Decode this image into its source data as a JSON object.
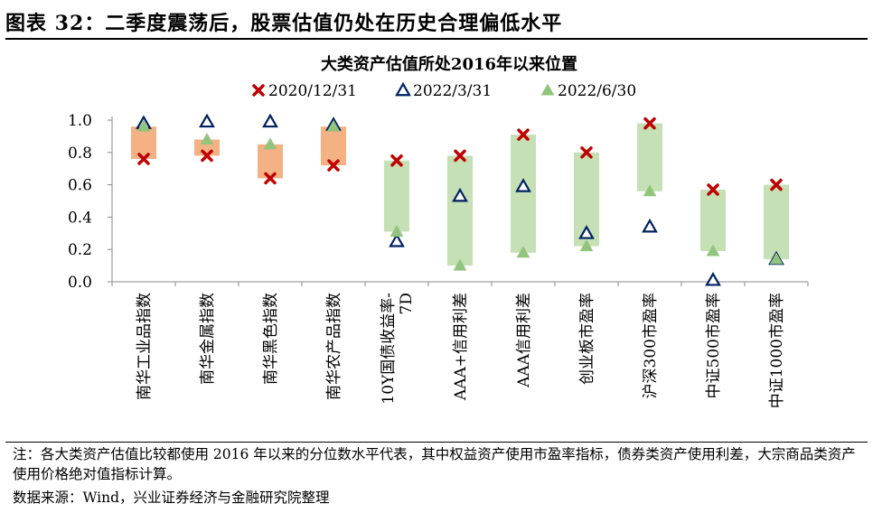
{
  "figure": {
    "title": "图表 32：二季度震荡后，股票估值仍处在历史合理偏低水平",
    "note": "注：各大类资产估值比较都使用 2016 年以来的分位数水平代表，其中权益资产使用市盈率指标，债券类资产使用利差，大宗商品类资产使用价格绝对值指标计算。",
    "source": "数据来源：Wind，兴业证券经济与金融研究院整理"
  },
  "chart_data": {
    "type": "scatter",
    "title": "大类资产估值所处2016年以来位置",
    "categories": [
      "南华工业品指数",
      "南华金属指数",
      "南华黑色指数",
      "南华农产品指数",
      "10Y国债收益率-7D",
      "AAA+信用利差",
      "AAA信用利差",
      "创业板市盈率",
      "沪深300市盈率",
      "中证500市盈率",
      "中证1000市盈率"
    ],
    "category_lines": [
      [
        "南华工业品指数"
      ],
      [
        "南华金属指数"
      ],
      [
        "南华黑色指数"
      ],
      [
        "南华农产品指数"
      ],
      [
        "10Y国债收益率-",
        "7D"
      ],
      [
        "AAA+信用利差"
      ],
      [
        "AAA信用利差"
      ],
      [
        "创业板市盈率"
      ],
      [
        "沪深300市盈率"
      ],
      [
        "中证500市盈率"
      ],
      [
        "中证1000市盈率"
      ]
    ],
    "ylim": [
      0,
      1.0
    ],
    "yticks": [
      "0.0",
      "0.2",
      "0.4",
      "0.6",
      "0.8",
      "1.0"
    ],
    "range_bars": {
      "low": [
        0.76,
        0.78,
        0.64,
        0.72,
        0.31,
        0.1,
        0.18,
        0.22,
        0.56,
        0.19,
        0.14
      ],
      "high": [
        0.96,
        0.88,
        0.85,
        0.96,
        0.75,
        0.78,
        0.91,
        0.8,
        0.98,
        0.57,
        0.6
      ],
      "colors": [
        "#f4b183",
        "#f4b183",
        "#f4b183",
        "#f4b183",
        "#c5e0b4",
        "#c5e0b4",
        "#c5e0b4",
        "#c5e0b4",
        "#c5e0b4",
        "#c5e0b4",
        "#c5e0b4"
      ]
    },
    "series": [
      {
        "name": "2020/12/31",
        "marker": "x",
        "color": "#c00000",
        "values": [
          0.76,
          0.78,
          0.64,
          0.72,
          0.75,
          0.78,
          0.91,
          0.8,
          0.98,
          0.57,
          0.6
        ]
      },
      {
        "name": "2022/3/31",
        "marker": "open-triangle",
        "color": "#002060",
        "values": [
          0.98,
          0.99,
          0.99,
          0.97,
          0.25,
          0.53,
          0.59,
          0.3,
          0.34,
          0.01,
          0.14
        ]
      },
      {
        "name": "2022/6/30",
        "marker": "filled-triangle",
        "color": "#92c47d",
        "values": [
          0.96,
          0.88,
          0.85,
          0.96,
          0.31,
          0.1,
          0.18,
          0.22,
          0.56,
          0.19,
          0.14
        ]
      }
    ],
    "legend": "top-center",
    "grid": false
  }
}
